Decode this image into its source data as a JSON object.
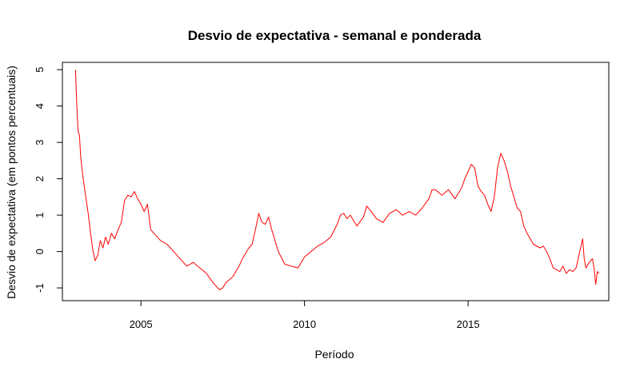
{
  "chart_data": {
    "type": "line",
    "title": "Desvio de expectativa - semanal e ponderada",
    "xlabel": "Período",
    "ylabel": "Desvio de expectativa (em pontos percentuais)",
    "xlim": [
      2002.6,
      2019.3
    ],
    "ylim": [
      -1.35,
      5.2
    ],
    "x_ticks": [
      2005,
      2010,
      2015
    ],
    "x_tick_labels": [
      "2005",
      "2010",
      "2015"
    ],
    "y_ticks": [
      -1,
      0,
      1,
      2,
      3,
      4,
      5
    ],
    "y_tick_labels": [
      "-1",
      "0",
      "1",
      "2",
      "3",
      "4",
      "5"
    ],
    "grid": false,
    "legend": "none",
    "series": [
      {
        "color": "#ff0000",
        "points": [
          [
            2003.0,
            5.0
          ],
          [
            2003.04,
            4.0
          ],
          [
            2003.08,
            3.3
          ],
          [
            2003.12,
            3.2
          ],
          [
            2003.16,
            2.6
          ],
          [
            2003.22,
            2.1
          ],
          [
            2003.3,
            1.6
          ],
          [
            2003.38,
            1.1
          ],
          [
            2003.46,
            0.5
          ],
          [
            2003.54,
            0.0
          ],
          [
            2003.6,
            -0.25
          ],
          [
            2003.68,
            -0.1
          ],
          [
            2003.76,
            0.3
          ],
          [
            2003.84,
            0.1
          ],
          [
            2003.92,
            0.4
          ],
          [
            2004.0,
            0.2
          ],
          [
            2004.1,
            0.5
          ],
          [
            2004.2,
            0.35
          ],
          [
            2004.3,
            0.6
          ],
          [
            2004.4,
            0.8
          ],
          [
            2004.5,
            1.4
          ],
          [
            2004.6,
            1.55
          ],
          [
            2004.7,
            1.5
          ],
          [
            2004.8,
            1.65
          ],
          [
            2004.9,
            1.45
          ],
          [
            2005.0,
            1.3
          ],
          [
            2005.1,
            1.1
          ],
          [
            2005.2,
            1.3
          ],
          [
            2005.3,
            0.6
          ],
          [
            2005.4,
            0.5
          ],
          [
            2005.6,
            0.3
          ],
          [
            2005.8,
            0.2
          ],
          [
            2006.0,
            0.0
          ],
          [
            2006.2,
            -0.2
          ],
          [
            2006.4,
            -0.4
          ],
          [
            2006.6,
            -0.3
          ],
          [
            2006.8,
            -0.45
          ],
          [
            2007.0,
            -0.6
          ],
          [
            2007.2,
            -0.85
          ],
          [
            2007.4,
            -1.05
          ],
          [
            2007.5,
            -1.0
          ],
          [
            2007.6,
            -0.85
          ],
          [
            2007.8,
            -0.7
          ],
          [
            2008.0,
            -0.4
          ],
          [
            2008.1,
            -0.2
          ],
          [
            2008.2,
            -0.05
          ],
          [
            2008.3,
            0.1
          ],
          [
            2008.4,
            0.2
          ],
          [
            2008.5,
            0.6
          ],
          [
            2008.6,
            1.05
          ],
          [
            2008.7,
            0.8
          ],
          [
            2008.8,
            0.75
          ],
          [
            2008.9,
            0.95
          ],
          [
            2009.0,
            0.6
          ],
          [
            2009.2,
            0.0
          ],
          [
            2009.4,
            -0.35
          ],
          [
            2009.6,
            -0.4
          ],
          [
            2009.8,
            -0.45
          ],
          [
            2010.0,
            -0.15
          ],
          [
            2010.2,
            0.0
          ],
          [
            2010.4,
            0.15
          ],
          [
            2010.6,
            0.25
          ],
          [
            2010.8,
            0.4
          ],
          [
            2011.0,
            0.75
          ],
          [
            2011.1,
            1.0
          ],
          [
            2011.2,
            1.05
          ],
          [
            2011.3,
            0.9
          ],
          [
            2011.4,
            1.0
          ],
          [
            2011.6,
            0.7
          ],
          [
            2011.8,
            0.95
          ],
          [
            2011.9,
            1.25
          ],
          [
            2012.0,
            1.15
          ],
          [
            2012.2,
            0.9
          ],
          [
            2012.4,
            0.8
          ],
          [
            2012.6,
            1.05
          ],
          [
            2012.8,
            1.15
          ],
          [
            2013.0,
            1.0
          ],
          [
            2013.2,
            1.1
          ],
          [
            2013.4,
            1.0
          ],
          [
            2013.6,
            1.2
          ],
          [
            2013.8,
            1.45
          ],
          [
            2013.9,
            1.7
          ],
          [
            2014.0,
            1.7
          ],
          [
            2014.2,
            1.55
          ],
          [
            2014.4,
            1.7
          ],
          [
            2014.6,
            1.45
          ],
          [
            2014.8,
            1.75
          ],
          [
            2014.9,
            2.0
          ],
          [
            2015.0,
            2.2
          ],
          [
            2015.1,
            2.4
          ],
          [
            2015.2,
            2.3
          ],
          [
            2015.3,
            1.8
          ],
          [
            2015.4,
            1.65
          ],
          [
            2015.5,
            1.55
          ],
          [
            2015.6,
            1.3
          ],
          [
            2015.7,
            1.1
          ],
          [
            2015.8,
            1.5
          ],
          [
            2015.9,
            2.3
          ],
          [
            2016.0,
            2.7
          ],
          [
            2016.1,
            2.5
          ],
          [
            2016.2,
            2.2
          ],
          [
            2016.3,
            1.8
          ],
          [
            2016.4,
            1.5
          ],
          [
            2016.5,
            1.2
          ],
          [
            2016.6,
            1.1
          ],
          [
            2016.7,
            0.7
          ],
          [
            2016.8,
            0.5
          ],
          [
            2016.9,
            0.35
          ],
          [
            2017.0,
            0.2
          ],
          [
            2017.2,
            0.1
          ],
          [
            2017.3,
            0.15
          ],
          [
            2017.4,
            0.0
          ],
          [
            2017.5,
            -0.2
          ],
          [
            2017.6,
            -0.45
          ],
          [
            2017.7,
            -0.5
          ],
          [
            2017.8,
            -0.55
          ],
          [
            2017.9,
            -0.4
          ],
          [
            2018.0,
            -0.6
          ],
          [
            2018.1,
            -0.5
          ],
          [
            2018.2,
            -0.55
          ],
          [
            2018.3,
            -0.45
          ],
          [
            2018.4,
            -0.05
          ],
          [
            2018.5,
            0.35
          ],
          [
            2018.55,
            -0.2
          ],
          [
            2018.6,
            -0.45
          ],
          [
            2018.7,
            -0.3
          ],
          [
            2018.8,
            -0.2
          ],
          [
            2018.85,
            -0.45
          ],
          [
            2018.9,
            -0.9
          ],
          [
            2018.95,
            -0.55
          ],
          [
            2019.0,
            -0.6
          ]
        ]
      }
    ]
  }
}
